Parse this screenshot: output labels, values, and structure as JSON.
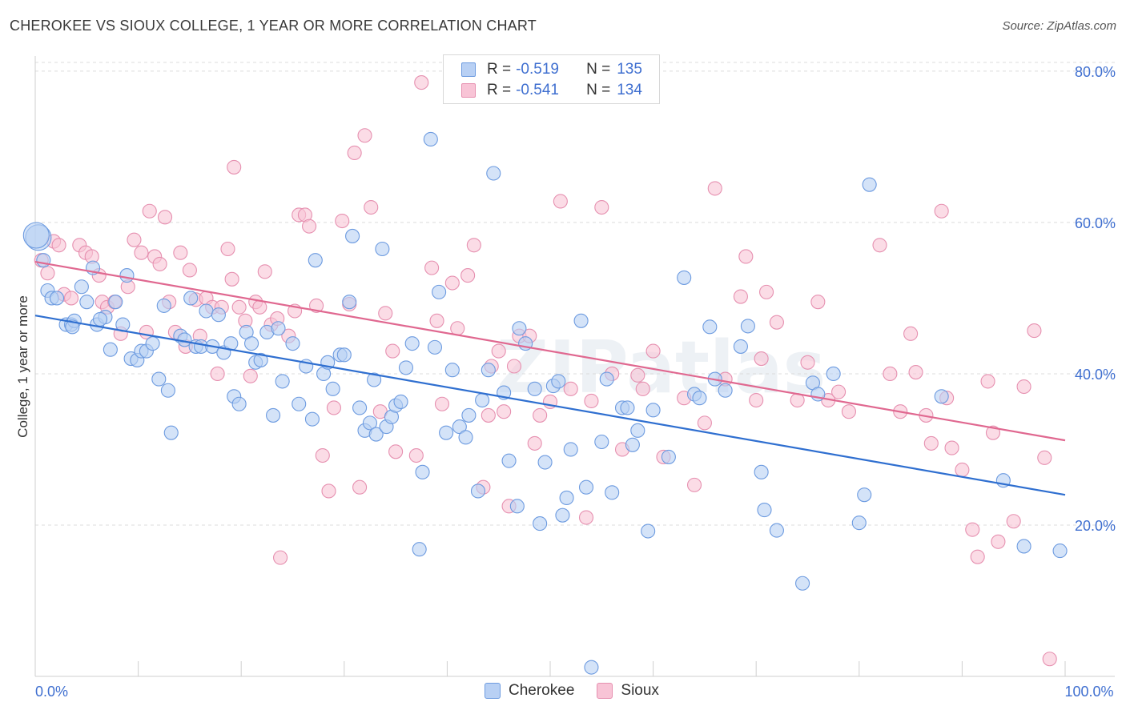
{
  "title": "CHEROKEE VS SIOUX COLLEGE, 1 YEAR OR MORE CORRELATION CHART",
  "source": "Source: ZipAtlas.com",
  "watermark": "ZIPatlas",
  "legend": {
    "rows": [
      {
        "r_label": "R =",
        "r_value": "-0.519",
        "n_label": "N =",
        "n_value": "135",
        "fill": "#b8d0f4",
        "stroke": "#6d9be0"
      },
      {
        "r_label": "R =",
        "r_value": "-0.541",
        "n_label": "N =",
        "n_value": "134",
        "fill": "#f8c4d6",
        "stroke": "#e690b0"
      }
    ]
  },
  "bottom_legend": [
    {
      "label": "Cherokee",
      "fill": "#b8d0f4",
      "stroke": "#6d9be0"
    },
    {
      "label": "Sioux",
      "fill": "#f8c4d6",
      "stroke": "#e690b0"
    }
  ],
  "chart_data": {
    "type": "scatter",
    "title": "CHEROKEE VS SIOUX COLLEGE, 1 YEAR OR MORE CORRELATION CHART",
    "xlabel": "",
    "ylabel": "College, 1 year or more",
    "xlim": [
      0,
      100
    ],
    "ylim": [
      0,
      82
    ],
    "x_tick_labels": [
      {
        "value": 0,
        "label": "0.0%"
      },
      {
        "value": 100,
        "label": "100.0%"
      }
    ],
    "y_tick_labels": [
      {
        "value": 20,
        "label": "20.0%"
      },
      {
        "value": 40,
        "label": "40.0%"
      },
      {
        "value": 60,
        "label": "60.0%"
      },
      {
        "value": 80,
        "label": "80.0%"
      }
    ],
    "grid": "horizontal dashed",
    "legend_position": "top-center",
    "colors": {
      "cherokee_fill": "#b8d0f4",
      "cherokee_stroke": "#6d9be0",
      "cherokee_line": "#2f6fd0",
      "sioux_fill": "#f8c4d6",
      "sioux_stroke": "#e690b0",
      "sioux_line": "#e06890",
      "axis_label": "#3f6fd0"
    },
    "series": [
      {
        "name": "Cherokee",
        "trend": {
          "x0": 0,
          "y0": 47.7,
          "x1": 100,
          "y1": 24.0
        },
        "points": [
          [
            0.3,
            58
          ],
          [
            0.8,
            55
          ],
          [
            1.2,
            51
          ],
          [
            1.6,
            50
          ],
          [
            2.1,
            50
          ],
          [
            3.0,
            46.5
          ],
          [
            3.5,
            46.5
          ],
          [
            3.8,
            47
          ],
          [
            4.5,
            51.5
          ],
          [
            5.0,
            49.5
          ],
          [
            5.6,
            54
          ],
          [
            6.0,
            46.5
          ],
          [
            6.8,
            47.5
          ],
          [
            7.3,
            43.2
          ],
          [
            7.8,
            49.5
          ],
          [
            8.5,
            46.5
          ],
          [
            8.9,
            53
          ],
          [
            9.3,
            42
          ],
          [
            9.9,
            41.8
          ],
          [
            10.3,
            43
          ],
          [
            10.8,
            43
          ],
          [
            11.4,
            44
          ],
          [
            12.0,
            39.3
          ],
          [
            12.5,
            49
          ],
          [
            12.9,
            37.8
          ],
          [
            13.2,
            32.2
          ],
          [
            14.1,
            45
          ],
          [
            14.5,
            44.5
          ],
          [
            15.1,
            50
          ],
          [
            15.6,
            43.6
          ],
          [
            16.1,
            43.6
          ],
          [
            16.6,
            48.3
          ],
          [
            17.2,
            43.6
          ],
          [
            17.8,
            47.8
          ],
          [
            18.3,
            42.8
          ],
          [
            19.0,
            44
          ],
          [
            19.3,
            37
          ],
          [
            19.8,
            36
          ],
          [
            20.5,
            45.5
          ],
          [
            21.0,
            44
          ],
          [
            21.4,
            41.5
          ],
          [
            21.9,
            41.8
          ],
          [
            22.5,
            45.5
          ],
          [
            23.1,
            34.5
          ],
          [
            23.6,
            46
          ],
          [
            24.0,
            39
          ],
          [
            25.0,
            44
          ],
          [
            25.6,
            36
          ],
          [
            26.3,
            41
          ],
          [
            26.9,
            34
          ],
          [
            27.2,
            55
          ],
          [
            28.0,
            40
          ],
          [
            28.4,
            41.5
          ],
          [
            28.9,
            38
          ],
          [
            29.6,
            42.5
          ],
          [
            30.0,
            42.5
          ],
          [
            30.5,
            49.5
          ],
          [
            30.8,
            58.2
          ],
          [
            31.5,
            35.5
          ],
          [
            32.0,
            32.5
          ],
          [
            32.5,
            33.5
          ],
          [
            32.9,
            39.2
          ],
          [
            33.1,
            32
          ],
          [
            33.7,
            56.5
          ],
          [
            34.1,
            33
          ],
          [
            34.6,
            34.3
          ],
          [
            35.0,
            35.8
          ],
          [
            35.5,
            36.3
          ],
          [
            36.0,
            40.8
          ],
          [
            36.6,
            44
          ],
          [
            37.3,
            16.8
          ],
          [
            37.6,
            27
          ],
          [
            38.4,
            71
          ],
          [
            38.8,
            43.5
          ],
          [
            39.2,
            50.8
          ],
          [
            39.9,
            32.2
          ],
          [
            40.5,
            40.5
          ],
          [
            41.2,
            33
          ],
          [
            41.8,
            31.6
          ],
          [
            42.1,
            34.5
          ],
          [
            43.0,
            24.5
          ],
          [
            43.4,
            36.5
          ],
          [
            44.0,
            40.5
          ],
          [
            44.5,
            66.5
          ],
          [
            45.5,
            37.5
          ],
          [
            46.0,
            28.5
          ],
          [
            46.8,
            22.5
          ],
          [
            47.0,
            46
          ],
          [
            47.6,
            44
          ],
          [
            48.5,
            38
          ],
          [
            49.0,
            20.2
          ],
          [
            49.5,
            28.3
          ],
          [
            50.3,
            38.4
          ],
          [
            50.8,
            39
          ],
          [
            51.2,
            21.3
          ],
          [
            51.6,
            23.6
          ],
          [
            52.0,
            30
          ],
          [
            53.0,
            47
          ],
          [
            53.5,
            25
          ],
          [
            54.0,
            1.2
          ],
          [
            55.0,
            31
          ],
          [
            55.5,
            39.3
          ],
          [
            56.0,
            24.3
          ],
          [
            57.0,
            35.5
          ],
          [
            57.5,
            35.5
          ],
          [
            58.0,
            30.6
          ],
          [
            58.5,
            32.5
          ],
          [
            59.5,
            19.2
          ],
          [
            60.0,
            35.2
          ],
          [
            61.5,
            29
          ],
          [
            63.0,
            52.7
          ],
          [
            64.0,
            37.3
          ],
          [
            64.5,
            36.8
          ],
          [
            65.5,
            46.2
          ],
          [
            66.0,
            39.3
          ],
          [
            67.0,
            37.8
          ],
          [
            68.5,
            43.6
          ],
          [
            69.2,
            46.3
          ],
          [
            70.5,
            27
          ],
          [
            70.8,
            22
          ],
          [
            72.0,
            19.3
          ],
          [
            74.5,
            12.3
          ],
          [
            75.5,
            38.8
          ],
          [
            76.0,
            37.3
          ],
          [
            77.5,
            40
          ],
          [
            80.0,
            20.3
          ],
          [
            80.5,
            24
          ],
          [
            81.0,
            65
          ],
          [
            88.0,
            37
          ],
          [
            94.0,
            25.9
          ],
          [
            96.0,
            17.2
          ],
          [
            99.5,
            16.6
          ],
          [
            0.1,
            58.3
          ],
          [
            3.6,
            46.2
          ],
          [
            6.3,
            47.2
          ]
        ]
      },
      {
        "name": "Sioux",
        "trend": {
          "x0": 0,
          "y0": 54.8,
          "x1": 100,
          "y1": 31.2
        },
        "points": [
          [
            0.6,
            55
          ],
          [
            1.2,
            53.3
          ],
          [
            1.8,
            57.5
          ],
          [
            2.3,
            57
          ],
          [
            2.8,
            50.5
          ],
          [
            3.5,
            50
          ],
          [
            4.3,
            57
          ],
          [
            4.9,
            56
          ],
          [
            5.5,
            55.5
          ],
          [
            6.2,
            53
          ],
          [
            6.5,
            49.5
          ],
          [
            7.0,
            48.8
          ],
          [
            7.7,
            49.5
          ],
          [
            8.3,
            45.3
          ],
          [
            9.0,
            51.5
          ],
          [
            9.6,
            57.7
          ],
          [
            10.3,
            56
          ],
          [
            10.8,
            45.5
          ],
          [
            11.1,
            61.5
          ],
          [
            11.6,
            55.5
          ],
          [
            12.1,
            54.5
          ],
          [
            12.6,
            60.7
          ],
          [
            13.0,
            49.5
          ],
          [
            13.6,
            45.5
          ],
          [
            14.1,
            56
          ],
          [
            14.6,
            43.6
          ],
          [
            15.0,
            53.7
          ],
          [
            15.6,
            49.8
          ],
          [
            16.0,
            45
          ],
          [
            16.6,
            50
          ],
          [
            17.2,
            48.8
          ],
          [
            17.7,
            40
          ],
          [
            18.1,
            48.8
          ],
          [
            18.7,
            56.5
          ],
          [
            19.1,
            52.5
          ],
          [
            19.3,
            67.3
          ],
          [
            19.8,
            48.8
          ],
          [
            20.4,
            47
          ],
          [
            20.9,
            39.7
          ],
          [
            21.4,
            49.5
          ],
          [
            21.8,
            48.8
          ],
          [
            22.3,
            53.5
          ],
          [
            22.9,
            46.5
          ],
          [
            23.5,
            47.3
          ],
          [
            23.8,
            15.7
          ],
          [
            24.6,
            45
          ],
          [
            25.2,
            48.3
          ],
          [
            25.6,
            61
          ],
          [
            26.2,
            61
          ],
          [
            26.6,
            59.5
          ],
          [
            27.3,
            49
          ],
          [
            27.9,
            29.2
          ],
          [
            28.5,
            24.5
          ],
          [
            29.0,
            35.5
          ],
          [
            29.8,
            60.2
          ],
          [
            30.5,
            49.2
          ],
          [
            31.0,
            69.2
          ],
          [
            31.5,
            25
          ],
          [
            32.0,
            71.5
          ],
          [
            32.6,
            62
          ],
          [
            33.5,
            35
          ],
          [
            34.0,
            48
          ],
          [
            34.7,
            43
          ],
          [
            35.0,
            29.7
          ],
          [
            37.0,
            29.2
          ],
          [
            37.5,
            78.5
          ],
          [
            38.5,
            54
          ],
          [
            39.0,
            47
          ],
          [
            39.5,
            36
          ],
          [
            40.5,
            52
          ],
          [
            41.0,
            46
          ],
          [
            42.0,
            53
          ],
          [
            42.6,
            57
          ],
          [
            43.5,
            25
          ],
          [
            44.0,
            34.5
          ],
          [
            44.3,
            41
          ],
          [
            45.0,
            43
          ],
          [
            45.5,
            35
          ],
          [
            46.0,
            22.5
          ],
          [
            46.5,
            41
          ],
          [
            47.0,
            45
          ],
          [
            48.0,
            45
          ],
          [
            48.5,
            30.8
          ],
          [
            49.0,
            34.5
          ],
          [
            50.0,
            36.3
          ],
          [
            51.0,
            62.8
          ],
          [
            52.0,
            38
          ],
          [
            53.5,
            21
          ],
          [
            54.0,
            36.4
          ],
          [
            55.0,
            62
          ],
          [
            56.0,
            40
          ],
          [
            57.0,
            30
          ],
          [
            58.5,
            39.8
          ],
          [
            59.0,
            38
          ],
          [
            60.0,
            43
          ],
          [
            61.0,
            29
          ],
          [
            63.0,
            36.8
          ],
          [
            64.0,
            25.3
          ],
          [
            65.0,
            33.5
          ],
          [
            66.0,
            64.5
          ],
          [
            67.0,
            39.3
          ],
          [
            68.5,
            50.2
          ],
          [
            69.0,
            55.5
          ],
          [
            70.0,
            36.5
          ],
          [
            71.0,
            50.8
          ],
          [
            72.0,
            46.8
          ],
          [
            74.0,
            36.5
          ],
          [
            75.0,
            41.5
          ],
          [
            76.0,
            49.5
          ],
          [
            77.0,
            36.5
          ],
          [
            78.0,
            37.6
          ],
          [
            79.0,
            35
          ],
          [
            82.0,
            57
          ],
          [
            83.0,
            40
          ],
          [
            84.0,
            35
          ],
          [
            85.0,
            45.3
          ],
          [
            85.5,
            40.2
          ],
          [
            86.5,
            34.5
          ],
          [
            87.0,
            30.8
          ],
          [
            88.0,
            61.5
          ],
          [
            89.0,
            30.2
          ],
          [
            90.0,
            27.3
          ],
          [
            91.0,
            19.4
          ],
          [
            91.5,
            15.8
          ],
          [
            92.5,
            39
          ],
          [
            93.0,
            32.2
          ],
          [
            95.0,
            20.5
          ],
          [
            96.0,
            38.3
          ],
          [
            97.0,
            45.7
          ],
          [
            98.0,
            28.9
          ],
          [
            98.5,
            2.3
          ],
          [
            93.5,
            17.8
          ],
          [
            88.5,
            36.8
          ],
          [
            70.5,
            42
          ]
        ]
      }
    ]
  }
}
